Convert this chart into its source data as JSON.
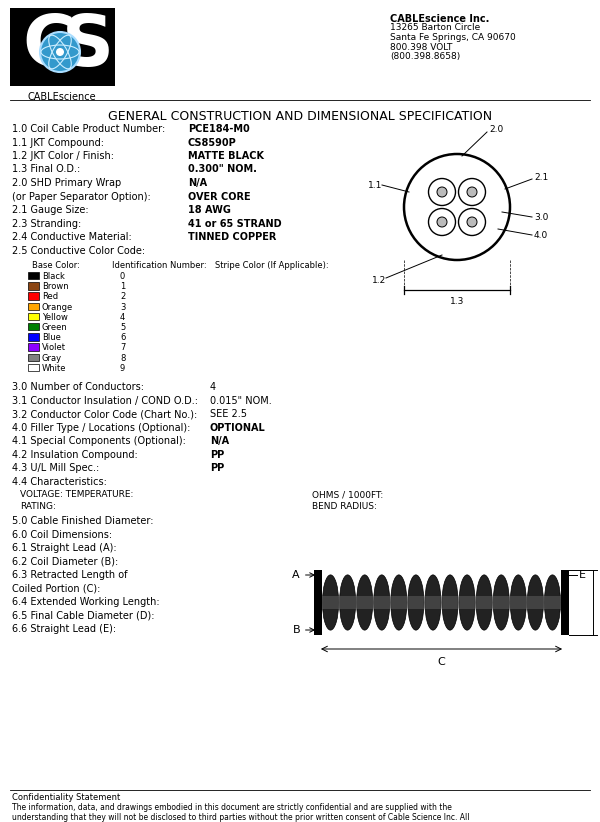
{
  "bg_color": "#ffffff",
  "title": "GENERAL CONSTRUCTION AND DIMENSIONAL SPECIFICATION",
  "company_name": "CABLEscience Inc.",
  "company_lines": [
    "CABLEscience Inc.",
    "13265 Barton Circle",
    "Santa Fe Springs, CA 90670",
    "800.398 VOLT",
    "(800.398.8658)"
  ],
  "spec_rows": [
    [
      "1.0 Coil Cable Product Number:",
      "PCE184-M0"
    ],
    [
      "1.1 JKT Compound:",
      "CS8590P"
    ],
    [
      "1.2 JKT Color / Finish:",
      "MATTE BLACK"
    ],
    [
      "1.3 Final O.D.:",
      "0.300\" NOM."
    ],
    [
      "2.0 SHD Primary Wrap",
      "N/A"
    ],
    [
      "(or Paper Separator Option):",
      "OVER CORE"
    ],
    [
      "2.1 Gauge Size:",
      "18 AWG"
    ],
    [
      "2.3 Stranding:",
      "41 or 65 STRAND"
    ],
    [
      "2.4 Conductive Material:",
      "TINNED COPPER"
    ],
    [
      "2.5 Conductive Color Code:",
      ""
    ]
  ],
  "color_table_headers": [
    "Base Color:",
    "Identification Number:",
    "Stripe Color (If Applicable):"
  ],
  "color_rows": [
    [
      "Black",
      "#000000",
      "0"
    ],
    [
      "Brown",
      "#8B4513",
      "1"
    ],
    [
      "Red",
      "#FF0000",
      "2"
    ],
    [
      "Orange",
      "#FFA500",
      "3"
    ],
    [
      "Yellow",
      "#FFFF00",
      "4"
    ],
    [
      "Green",
      "#008000",
      "5"
    ],
    [
      "Blue",
      "#0000FF",
      "6"
    ],
    [
      "Violet",
      "#8B00FF",
      "7"
    ],
    [
      "Gray",
      "#808080",
      "8"
    ],
    [
      "White",
      "#FFFFFF",
      "9"
    ]
  ],
  "spec_rows2": [
    [
      "3.0 Number of Conductors:",
      "4",
      false
    ],
    [
      "3.1 Conductor Insulation / COND O.D.:",
      "0.015\" NOM.",
      false
    ],
    [
      "3.2 Conductor Color Code (Chart No.):",
      "SEE 2.5",
      false
    ],
    [
      "4.0 Filler Type / Locations (Optional):",
      "OPTIONAL",
      true
    ],
    [
      "4.1 Special Components (Optional):",
      "N/A",
      true
    ],
    [
      "4.2 Insulation Compound:",
      "PP",
      true
    ],
    [
      "4.3 U/L Mill Spec.:",
      "PP",
      true
    ],
    [
      "4.4 Characteristics:",
      "",
      false
    ]
  ],
  "spec_rows3": [
    "5.0 Cable Finished Diameter:",
    "6.0 Coil Dimensions:",
    "6.1 Straight Lead (A):",
    "6.2 Coil Diameter (B):",
    "6.3 Retracted Length of",
    "Coiled Portion (C):",
    "6.4 Extended Working Length:",
    "6.5 Final Cable Diameter (D):",
    "6.6 Straight Lead (E):"
  ],
  "confidentiality_title": "Confidentiality Statement",
  "confidentiality_body": "The information, data, and drawings embodied in this document are strictly confidential and are supplied with the\nunderstanding that they will not be disclosed to third parties without the prior written consent of Cable Science Inc. All\ninformation, illustrations and data contained herein Copyright © CABLE SCIENCE INC., 2002-2023, ALL RIGHTS RESERVED"
}
